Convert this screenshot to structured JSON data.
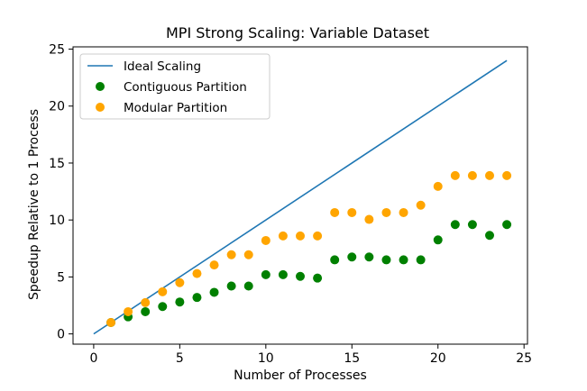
{
  "chart_data": {
    "type": "scatter",
    "title": "MPI Strong Scaling: Variable Dataset",
    "xlabel": "Number of Processes",
    "ylabel": "Speedup Relative to 1 Process",
    "xlim": [
      -1.2,
      25.2
    ],
    "ylim": [
      -0.9,
      25.2
    ],
    "xticks": [
      0,
      5,
      10,
      15,
      20,
      25
    ],
    "yticks": [
      0,
      5,
      10,
      15,
      20,
      25
    ],
    "legend_position": "top-left",
    "series": [
      {
        "name": "Ideal Scaling",
        "kind": "line",
        "color": "#1f77b4",
        "x": [
          0,
          24
        ],
        "y": [
          0,
          24
        ]
      },
      {
        "name": "Contiguous Partition",
        "kind": "scatter",
        "color": "#008000",
        "x": [
          1,
          2,
          3,
          4,
          5,
          6,
          7,
          8,
          9,
          10,
          11,
          12,
          13,
          14,
          15,
          16,
          17,
          18,
          19,
          20,
          21,
          22,
          23,
          24
        ],
        "y": [
          1.0,
          1.5,
          1.95,
          2.4,
          2.8,
          3.2,
          3.65,
          4.2,
          4.2,
          5.2,
          5.2,
          5.05,
          4.9,
          6.5,
          6.75,
          6.75,
          6.5,
          6.5,
          6.5,
          8.25,
          9.6,
          9.6,
          8.65,
          9.6
        ]
      },
      {
        "name": "Modular Partition",
        "kind": "scatter",
        "color": "#ffa500",
        "x": [
          1,
          2,
          3,
          4,
          5,
          6,
          7,
          8,
          9,
          10,
          11,
          12,
          13,
          14,
          15,
          16,
          17,
          18,
          19,
          20,
          21,
          22,
          23,
          24
        ],
        "y": [
          1.0,
          1.95,
          2.75,
          3.7,
          4.5,
          5.3,
          6.05,
          6.95,
          6.95,
          8.2,
          8.6,
          8.6,
          8.6,
          10.65,
          10.65,
          10.05,
          10.65,
          10.65,
          11.3,
          12.95,
          13.9,
          13.9,
          13.9,
          13.9
        ]
      }
    ]
  }
}
